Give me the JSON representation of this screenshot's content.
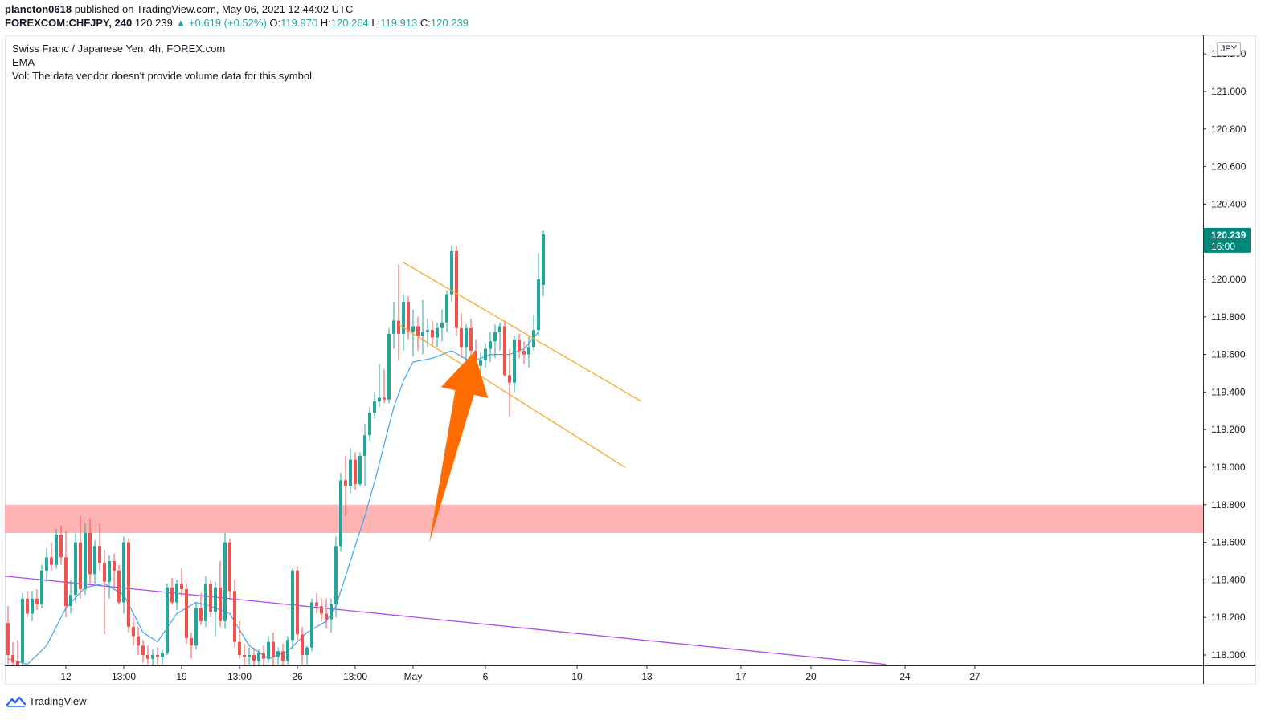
{
  "header": {
    "author": "plancton0618",
    "published_text": "published on TradingView.com, May 06, 2021 12:44:02 UTC",
    "symbol": "FOREXCOM:CHFJPY, 240",
    "last": "120.239",
    "change": "▲ +0.619 (+0.52%)",
    "o_label": "O:",
    "o_value": "119.970",
    "h_label": "H:",
    "h_value": "120.264",
    "l_label": "L:",
    "l_value": "119.913",
    "c_label": "C:",
    "c_value": "120.239"
  },
  "legend": {
    "title": "Swiss Franc / Japanese Yen, 4h, FOREX.com",
    "indicator": "EMA",
    "volume_note": "Vol: The data vendor doesn't provide volume data for this symbol."
  },
  "currency_button": "JPY",
  "price_badge": {
    "price": "120.239",
    "countdown": "16:00",
    "color": "#00897b"
  },
  "brand": {
    "name": "TradingView"
  },
  "colors": {
    "up": "#26a69a",
    "down": "#ef5350",
    "ema": "#42a5f5",
    "channel": "#ffa726",
    "trendline": "#b44cf0",
    "zone": "#ffb3b3",
    "arrow": "#ff6d00"
  },
  "chart_data": {
    "type": "candlestick",
    "symbol": "CHFJPY",
    "timeframe": "4h",
    "y_axis": {
      "range": [
        117.96,
        121.2
      ],
      "ticks": [
        "118.000",
        "118.200",
        "118.400",
        "118.600",
        "118.800",
        "119.000",
        "119.200",
        "119.400",
        "119.600",
        "119.800",
        "120.000",
        "120.200",
        "120.400",
        "120.600",
        "120.800",
        "121.000",
        "121.200"
      ]
    },
    "x_axis": {
      "range": [
        0,
        208
      ],
      "ticks": [
        {
          "label": "12",
          "x": 12
        },
        {
          "label": "13:00",
          "x": 24
        },
        {
          "label": "19",
          "x": 36
        },
        {
          "label": "13:00",
          "x": 48
        },
        {
          "label": "26",
          "x": 60
        },
        {
          "label": "13:00",
          "x": 72
        },
        {
          "label": "May",
          "x": 84
        },
        {
          "label": "6",
          "x": 99
        },
        {
          "label": "10",
          "x": 118
        },
        {
          "label": "13",
          "x": 132.5
        },
        {
          "label": "17",
          "x": 152
        },
        {
          "label": "20",
          "x": 166.5
        },
        {
          "label": "24",
          "x": 186
        },
        {
          "label": "27",
          "x": 200.5
        }
      ]
    },
    "candles": [
      [
        118.17,
        118.26,
        117.95,
        118.0
      ],
      [
        118.0,
        118.07,
        117.94,
        117.96
      ],
      [
        117.97,
        118.08,
        117.9,
        117.94
      ],
      [
        117.96,
        118.33,
        117.93,
        118.3
      ],
      [
        118.3,
        118.34,
        118.2,
        118.22
      ],
      [
        118.22,
        118.34,
        118.18,
        118.3
      ],
      [
        118.3,
        118.35,
        118.24,
        118.27
      ],
      [
        118.27,
        118.48,
        118.25,
        118.45
      ],
      [
        118.45,
        118.57,
        118.39,
        118.52
      ],
      [
        118.52,
        118.6,
        118.45,
        118.48
      ],
      [
        118.48,
        118.67,
        118.46,
        118.64
      ],
      [
        118.64,
        118.69,
        118.48,
        118.52
      ],
      [
        118.52,
        118.66,
        118.2,
        118.26
      ],
      [
        118.26,
        118.4,
        118.22,
        118.32
      ],
      [
        118.32,
        118.65,
        118.28,
        118.6
      ],
      [
        118.6,
        118.74,
        118.3,
        118.35
      ],
      [
        118.35,
        118.7,
        118.32,
        118.65
      ],
      [
        118.65,
        118.73,
        118.38,
        118.43
      ],
      [
        118.43,
        118.61,
        118.38,
        118.58
      ],
      [
        118.58,
        118.7,
        118.45,
        118.49
      ],
      [
        118.49,
        118.56,
        118.11,
        118.39
      ],
      [
        118.39,
        118.53,
        118.3,
        118.5
      ],
      [
        118.5,
        118.54,
        118.35,
        118.45
      ],
      [
        118.45,
        118.48,
        118.27,
        118.28
      ],
      [
        118.28,
        118.63,
        118.22,
        118.6
      ],
      [
        118.6,
        118.62,
        118.12,
        118.15
      ],
      [
        118.15,
        118.2,
        118.05,
        118.1
      ],
      [
        118.1,
        118.15,
        118.0,
        118.05
      ],
      [
        118.05,
        118.08,
        117.96,
        118.0
      ],
      [
        118.0,
        118.05,
        117.95,
        117.98
      ],
      [
        117.98,
        118.03,
        117.93,
        118.0
      ],
      [
        118.0,
        118.04,
        117.95,
        117.99
      ],
      [
        117.99,
        118.03,
        117.95,
        118.01
      ],
      [
        118.01,
        118.38,
        118.0,
        118.36
      ],
      [
        118.36,
        118.41,
        118.27,
        118.28
      ],
      [
        118.28,
        118.4,
        118.24,
        118.38
      ],
      [
        118.38,
        118.46,
        118.31,
        118.35
      ],
      [
        118.35,
        118.38,
        118.06,
        118.09
      ],
      [
        118.09,
        118.12,
        117.98,
        118.05
      ],
      [
        118.05,
        118.28,
        118.03,
        118.25
      ],
      [
        118.25,
        118.33,
        118.16,
        118.18
      ],
      [
        118.18,
        118.42,
        118.15,
        118.38
      ],
      [
        118.38,
        118.4,
        118.2,
        118.23
      ],
      [
        118.23,
        118.39,
        118.1,
        118.36
      ],
      [
        118.36,
        118.5,
        118.15,
        118.18
      ],
      [
        118.18,
        118.65,
        118.14,
        118.6
      ],
      [
        118.6,
        118.62,
        118.3,
        118.34
      ],
      [
        118.34,
        118.4,
        118.04,
        118.07
      ],
      [
        118.07,
        118.18,
        117.98,
        118.0
      ],
      [
        118.0,
        118.06,
        117.94,
        117.99
      ],
      [
        117.99,
        118.04,
        117.95,
        118.0
      ],
      [
        118.0,
        118.04,
        117.94,
        117.97
      ],
      [
        117.97,
        118.03,
        117.94,
        118.01
      ],
      [
        118.01,
        118.05,
        117.94,
        117.98
      ],
      [
        117.98,
        118.1,
        117.96,
        118.07
      ],
      [
        118.07,
        118.12,
        117.94,
        117.99
      ],
      [
        117.99,
        118.04,
        117.95,
        118.02
      ],
      [
        118.02,
        118.06,
        117.94,
        117.97
      ],
      [
        117.97,
        118.1,
        117.95,
        118.08
      ],
      [
        118.08,
        118.46,
        118.03,
        118.45
      ],
      [
        118.45,
        118.47,
        118.08,
        118.11
      ],
      [
        118.11,
        118.15,
        117.95,
        118.0
      ],
      [
        118.0,
        118.05,
        117.95,
        118.04
      ],
      [
        118.04,
        118.3,
        118.02,
        118.28
      ],
      [
        118.28,
        118.33,
        118.22,
        118.26
      ],
      [
        118.26,
        118.3,
        118.18,
        118.22
      ],
      [
        118.22,
        118.3,
        118.14,
        118.19
      ],
      [
        118.19,
        118.3,
        118.12,
        118.27
      ],
      [
        118.27,
        118.63,
        118.2,
        118.58
      ],
      [
        118.58,
        118.97,
        118.55,
        118.93
      ],
      [
        118.93,
        119.06,
        118.74,
        118.9
      ],
      [
        118.9,
        119.1,
        118.86,
        119.04
      ],
      [
        119.04,
        119.08,
        118.88,
        118.91
      ],
      [
        118.91,
        119.08,
        118.9,
        119.06
      ],
      [
        119.06,
        119.23,
        118.9,
        119.17
      ],
      [
        119.17,
        119.32,
        119.14,
        119.29
      ],
      [
        119.29,
        119.4,
        119.26,
        119.35
      ],
      [
        119.35,
        119.55,
        119.32,
        119.37
      ],
      [
        119.37,
        119.52,
        119.34,
        119.36
      ],
      [
        119.36,
        119.74,
        119.34,
        119.71
      ],
      [
        119.71,
        119.88,
        119.63,
        119.78
      ],
      [
        119.78,
        120.08,
        119.57,
        119.71
      ],
      [
        119.71,
        119.92,
        119.62,
        119.88
      ],
      [
        119.88,
        119.91,
        119.68,
        119.72
      ],
      [
        119.72,
        119.84,
        119.59,
        119.75
      ],
      [
        119.75,
        119.8,
        119.62,
        119.7
      ],
      [
        119.7,
        119.89,
        119.6,
        119.72
      ],
      [
        119.72,
        119.79,
        119.64,
        119.73
      ],
      [
        119.73,
        119.78,
        119.65,
        119.69
      ],
      [
        119.69,
        119.77,
        119.64,
        119.74
      ],
      [
        119.74,
        119.84,
        119.67,
        119.77
      ],
      [
        119.77,
        119.94,
        119.72,
        119.92
      ],
      [
        119.92,
        120.18,
        119.88,
        120.15
      ],
      [
        120.15,
        120.18,
        119.7,
        119.74
      ],
      [
        119.74,
        119.82,
        119.58,
        119.64
      ],
      [
        119.64,
        119.76,
        119.57,
        119.74
      ],
      [
        119.74,
        119.79,
        119.58,
        119.62
      ],
      [
        119.62,
        119.68,
        119.5,
        119.54
      ],
      [
        119.54,
        119.61,
        119.46,
        119.57
      ],
      [
        119.57,
        119.66,
        119.53,
        119.63
      ],
      [
        119.63,
        119.72,
        119.56,
        119.67
      ],
      [
        119.67,
        119.76,
        119.58,
        119.72
      ],
      [
        119.72,
        119.77,
        119.62,
        119.75
      ],
      [
        119.75,
        119.78,
        119.48,
        119.49
      ],
      [
        119.49,
        119.63,
        119.27,
        119.45
      ],
      [
        119.45,
        119.7,
        119.4,
        119.68
      ],
      [
        119.68,
        119.71,
        119.58,
        119.62
      ],
      [
        119.62,
        119.67,
        119.55,
        119.6
      ],
      [
        119.6,
        119.7,
        119.53,
        119.64
      ],
      [
        119.64,
        119.81,
        119.62,
        119.73
      ],
      [
        119.73,
        120.14,
        119.7,
        120.0
      ],
      [
        119.97,
        120.26,
        119.91,
        120.24
      ]
    ],
    "ema": [
      [
        0,
        117.98
      ],
      [
        4,
        117.95
      ],
      [
        8,
        118.05
      ],
      [
        12,
        118.25
      ],
      [
        16,
        118.36
      ],
      [
        20,
        118.38
      ],
      [
        24,
        118.32
      ],
      [
        28,
        118.12
      ],
      [
        31,
        118.07
      ],
      [
        35,
        118.22
      ],
      [
        39,
        118.28
      ],
      [
        42,
        118.26
      ],
      [
        46,
        118.22
      ],
      [
        50,
        118.05
      ],
      [
        54,
        117.98
      ],
      [
        58,
        118.02
      ],
      [
        62,
        118.12
      ],
      [
        66,
        118.18
      ],
      [
        68,
        118.26
      ],
      [
        70,
        118.42
      ],
      [
        72,
        118.58
      ],
      [
        74,
        118.74
      ],
      [
        76,
        118.92
      ],
      [
        78,
        119.12
      ],
      [
        80,
        119.32
      ],
      [
        82,
        119.46
      ],
      [
        84,
        119.56
      ],
      [
        88,
        119.58
      ],
      [
        92,
        119.62
      ],
      [
        96,
        119.56
      ],
      [
        100,
        119.6
      ],
      [
        104,
        119.6
      ],
      [
        107,
        119.63
      ],
      [
        110,
        119.72
      ]
    ],
    "annotations": {
      "zone": {
        "from": 118.65,
        "to": 118.8
      },
      "trendline": [
        [
          0,
          118.42
        ],
        [
          182,
          117.95
        ]
      ],
      "channel_upper": [
        [
          82,
          120.09
        ],
        [
          112,
          119.64
        ]
      ],
      "channel_lower": [
        [
          81,
          119.76
        ],
        [
          110,
          119.29
        ]
      ],
      "arrow": {
        "from": [
          76,
          118.65
        ],
        "to": [
          86,
          119.4
        ]
      }
    }
  }
}
